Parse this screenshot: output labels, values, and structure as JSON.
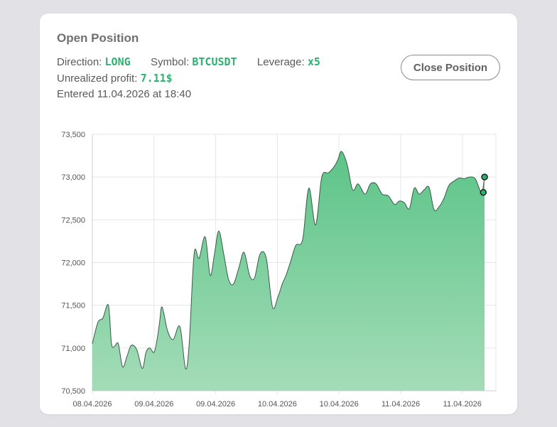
{
  "card": {
    "title": "Open Position",
    "direction_label": "Direction:",
    "direction_value": "LONG",
    "symbol_label": "Symbol:",
    "symbol_value": "BTCUSDT",
    "leverage_label": "Leverage:",
    "leverage_value": "x5",
    "profit_label": "Unrealized profit:",
    "profit_value": "7.11$",
    "entered_text": "Entered 11.04.2026 at 18:40",
    "close_button": "Close Position"
  },
  "colors": {
    "accent": "#2fb170",
    "area_top": "#5cc488",
    "area_bottom": "#a4dcb8"
  },
  "chart_data": {
    "type": "area",
    "ylim": [
      70500,
      73500
    ],
    "yticks": [
      "70,500",
      "71,000",
      "71,500",
      "72,000",
      "72,500",
      "73,000",
      "73,500"
    ],
    "ytick_values": [
      70500,
      71000,
      71500,
      72000,
      72500,
      73000,
      73500
    ],
    "xticks": [
      "08.04.2026",
      "09.04.2026",
      "09.04.2026",
      "10.04.2026",
      "10.04.2026",
      "11.04.2026",
      "11.04.2026"
    ],
    "xlim": [
      0,
      6.4
    ],
    "grid": true,
    "x": [
      0,
      0.09,
      0.17,
      0.26,
      0.31,
      0.36,
      0.42,
      0.49,
      0.56,
      0.63,
      0.72,
      0.81,
      0.87,
      0.93,
      1.0,
      1.05,
      1.09,
      1.13,
      1.22,
      1.31,
      1.42,
      1.51,
      1.57,
      1.65,
      1.73,
      1.83,
      1.91,
      1.98,
      2.05,
      2.13,
      2.21,
      2.29,
      2.38,
      2.46,
      2.55,
      2.63,
      2.72,
      2.82,
      2.92,
      3.01,
      3.08,
      3.14,
      3.21,
      3.3,
      3.41,
      3.51,
      3.62,
      3.72,
      3.83,
      3.92,
      3.98,
      4.04,
      4.13,
      4.22,
      4.31,
      4.42,
      4.51,
      4.6,
      4.7,
      4.8,
      4.9,
      4.98,
      5.06,
      5.14,
      5.22,
      5.3,
      5.38,
      5.46,
      5.54,
      5.62,
      5.7,
      5.78,
      5.86,
      5.95,
      6.03,
      6.11,
      6.21,
      6.31,
      6.36
    ],
    "y": [
      71050,
      71300,
      71350,
      71500,
      71050,
      71020,
      71050,
      70780,
      70900,
      71030,
      70980,
      70760,
      70950,
      71000,
      70950,
      71100,
      71300,
      71480,
      71200,
      71100,
      71250,
      70760,
      71050,
      72100,
      72050,
      72300,
      71850,
      72100,
      72370,
      72100,
      71800,
      71750,
      71950,
      72120,
      71850,
      71820,
      72100,
      72050,
      71480,
      71600,
      71750,
      71850,
      72000,
      72200,
      72270,
      72870,
      72440,
      73000,
      73050,
      73120,
      73200,
      73300,
      73150,
      72850,
      72920,
      72800,
      72920,
      72920,
      72800,
      72780,
      72680,
      72720,
      72700,
      72630,
      72870,
      72800,
      72850,
      72880,
      72620,
      72650,
      72750,
      72900,
      72950,
      72990,
      72980,
      73000,
      72980,
      72820,
      73000
    ],
    "markers": [
      {
        "x": 6.36,
        "y": 73000
      },
      {
        "x": 6.34,
        "y": 72820
      }
    ]
  }
}
